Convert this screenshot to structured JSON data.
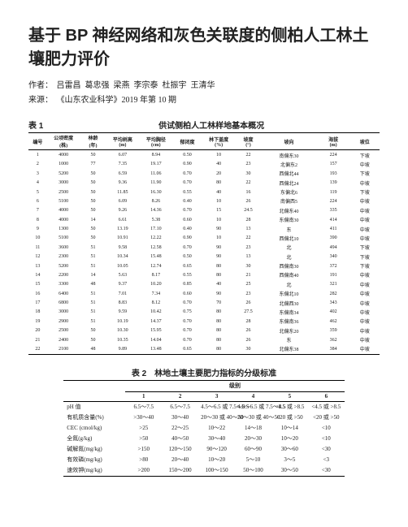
{
  "title": "基于 BP 神经网络和灰色关联度的侧柏人工林土壤肥力评价",
  "authors_label": "作者：",
  "authors": [
    "吕雷昌",
    "葛忠强",
    "梁燕",
    "李宗泰",
    "杜振宇",
    "王清华"
  ],
  "source_label": "来源：",
  "source": "《山东农业科学》2019 年第 10 期",
  "table1": {
    "caption_left": "表 1",
    "caption_right": "供试侧柏人工林样地基本概况",
    "cols": [
      "编号",
      "公顷密度\n(株)",
      "林龄\n(年)",
      "平均树高\n(m)",
      "平均胸径\n(cm)",
      "郁闭度",
      "林下盖度\n(%)",
      "坡度\n(°)",
      "坡向",
      "海拔\n(m)",
      "坡位"
    ],
    "rows": [
      [
        "1",
        "4000",
        "50",
        "6.07",
        "8.94",
        "0.50",
        "10",
        "22",
        "南偏东30",
        "224",
        "下坡"
      ],
      [
        "2",
        "1000",
        "77",
        "7.35",
        "19.17",
        "0.90",
        "40",
        "23",
        "北偏东2",
        "157",
        "中坡"
      ],
      [
        "3",
        "5200",
        "50",
        "6.59",
        "11.06",
        "0.70",
        "20",
        "30",
        "西偏北44",
        "193",
        "下坡"
      ],
      [
        "4",
        "3000",
        "50",
        "9.36",
        "11.90",
        "0.70",
        "80",
        "22",
        "西偏北24",
        "139",
        "中坡"
      ],
      [
        "5",
        "2500",
        "50",
        "11.85",
        "16.30",
        "0.55",
        "40",
        "16",
        "东偏北6",
        "119",
        "下坡"
      ],
      [
        "6",
        "5100",
        "50",
        "6.09",
        "8.26",
        "0.40",
        "10",
        "26",
        "南偏西5",
        "224",
        "中坡"
      ],
      [
        "7",
        "4000",
        "50",
        "9.26",
        "14.36",
        "0.70",
        "15",
        "24.5",
        "北偏东40",
        "335",
        "中坡"
      ],
      [
        "8",
        "4000",
        "14",
        "6.61",
        "5.38",
        "0.60",
        "10",
        "28",
        "东偏南30",
        "414",
        "中坡"
      ],
      [
        "9",
        "1300",
        "50",
        "13.19",
        "17.10",
        "0.40",
        "90",
        "13",
        "东",
        "411",
        "中坡"
      ],
      [
        "10",
        "5100",
        "50",
        "10.91",
        "12.22",
        "0.90",
        "10",
        "22",
        "西偏北10",
        "390",
        "中坡"
      ],
      [
        "11",
        "3600",
        "51",
        "9.58",
        "12.58",
        "0.70",
        "90",
        "23",
        "北",
        "494",
        "下坡"
      ],
      [
        "12",
        "2300",
        "51",
        "10.34",
        "15.48",
        "0.50",
        "90",
        "13",
        "北",
        "340",
        "下坡"
      ],
      [
        "13",
        "5200",
        "51",
        "10.05",
        "12.74",
        "0.65",
        "80",
        "30",
        "西偏南30",
        "372",
        "下坡"
      ],
      [
        "14",
        "2200",
        "14",
        "5.63",
        "8.17",
        "0.55",
        "80",
        "21",
        "西偏南40",
        "191",
        "中坡"
      ],
      [
        "15",
        "3300",
        "48",
        "9.37",
        "10.20",
        "0.85",
        "40",
        "25",
        "北",
        "321",
        "中坡"
      ],
      [
        "16",
        "6400",
        "51",
        "7.01",
        "7.34",
        "0.60",
        "90",
        "23",
        "东偏北10",
        "282",
        "中坡"
      ],
      [
        "17",
        "6800",
        "51",
        "8.83",
        "8.12",
        "0.70",
        "70",
        "26",
        "北偏西30",
        "343",
        "中坡"
      ],
      [
        "18",
        "3000",
        "51",
        "9.59",
        "10.42",
        "0.75",
        "80",
        "27.5",
        "东偏南34",
        "402",
        "中坡"
      ],
      [
        "19",
        "2900",
        "51",
        "10.19",
        "14.37",
        "0.70",
        "80",
        "28",
        "东偏南36",
        "462",
        "中坡"
      ],
      [
        "20",
        "2500",
        "50",
        "10.30",
        "15.95",
        "0.70",
        "80",
        "26",
        "北偏东20",
        "359",
        "中坡"
      ],
      [
        "21",
        "2400",
        "50",
        "10.35",
        "14.04",
        "0.70",
        "80",
        "26",
        "东",
        "362",
        "中坡"
      ],
      [
        "22",
        "2100",
        "48",
        "9.89",
        "13.48",
        "0.65",
        "80",
        "30",
        "北偏东38",
        "384",
        "中坡"
      ]
    ]
  },
  "table2": {
    "caption": "表 2　林地土壤主要肥力指标的分级标准",
    "group_header": "级别",
    "levels": [
      "1",
      "2",
      "3",
      "4",
      "5",
      "6"
    ],
    "rows": [
      {
        "name": "pH 值",
        "v": [
          "6.5～7.5",
          "6.5～7.5",
          "4.5～6.5 或 7.5～8.5",
          "4.5～6.5 或 7.5～8.5",
          "<4.5 或 >8.5",
          "<4.5 或 >8.5"
        ]
      },
      {
        "name": "有机质含量(%)",
        "v": [
          ">30～40",
          "30～40",
          "20～30 或 40～50",
          "20～30 或 40～50",
          "<20 或 >50",
          "<20 或 >50"
        ]
      },
      {
        "name": "CEC (cmol/kg)",
        "v": [
          ">25",
          "22～25",
          "10～22",
          "14～18",
          "10～14",
          "<10"
        ]
      },
      {
        "name": "全氮(g/kg)",
        "v": [
          ">50",
          "40～50",
          "30～40",
          "20～30",
          "10～20",
          "<10"
        ]
      },
      {
        "name": "碱解氮(mg/kg)",
        "v": [
          ">150",
          "120～150",
          "90～120",
          "60～90",
          "30～60",
          "<30"
        ]
      },
      {
        "name": "有效磷(mg/kg)",
        "v": [
          ">80",
          "20～40",
          "10～20",
          "5～10",
          "3～5",
          "<3"
        ]
      },
      {
        "name": "速效钾(mg/kg)",
        "v": [
          ">200",
          "150～200",
          "100～150",
          "50～100",
          "30～50",
          "<30"
        ]
      }
    ]
  }
}
